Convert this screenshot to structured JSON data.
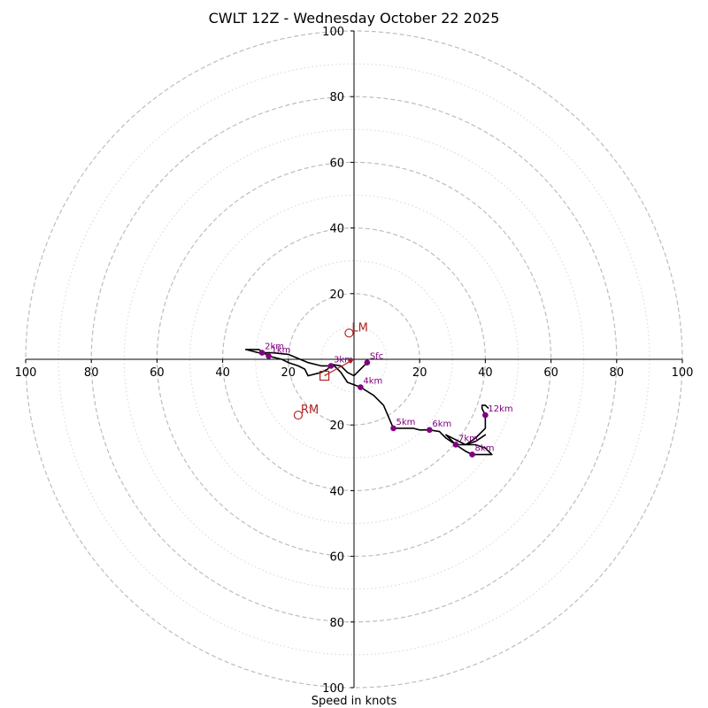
{
  "chart_data": {
    "type": "hodograph",
    "title": "CWLT 12Z - Wednesday October 22 2025",
    "xlabel": "Speed in knots",
    "units": "knots",
    "max_speed": 100,
    "major_rings": [
      20,
      40,
      60,
      80,
      100
    ],
    "minor_rings": [
      10,
      30,
      50,
      70,
      90
    ],
    "x_tick_labels": [
      "100",
      "80",
      "60",
      "40",
      "20",
      "20",
      "40",
      "60",
      "80",
      "100"
    ],
    "y_tick_labels": [
      "100",
      "80",
      "60",
      "40",
      "20",
      "20",
      "40",
      "60",
      "80",
      "100"
    ],
    "hodograph_trace": [
      [
        4,
        -1
      ],
      [
        3,
        -2
      ],
      [
        1,
        -4
      ],
      [
        0,
        -5
      ],
      [
        -2,
        -4
      ],
      [
        -4,
        -2
      ],
      [
        -7,
        -1.5
      ],
      [
        -8,
        -3
      ],
      [
        -10,
        -4
      ],
      [
        -14,
        -5
      ],
      [
        -15,
        -3
      ],
      [
        -17,
        -2
      ],
      [
        -20,
        -1
      ],
      [
        -22,
        0
      ],
      [
        -26,
        1
      ],
      [
        -29,
        3
      ],
      [
        -33,
        3
      ],
      [
        -29,
        2
      ],
      [
        -25,
        2
      ],
      [
        -20,
        1.5
      ],
      [
        -14,
        -1
      ],
      [
        -10,
        -2
      ],
      [
        -6,
        -2
      ],
      [
        -4,
        -4
      ],
      [
        -2,
        -7
      ],
      [
        2,
        -8.5
      ],
      [
        6,
        -11
      ],
      [
        9,
        -14
      ],
      [
        12,
        -21
      ],
      [
        14,
        -21
      ],
      [
        18,
        -21
      ],
      [
        20,
        -21.5
      ],
      [
        23,
        -21.5
      ],
      [
        26,
        -22
      ],
      [
        28,
        -24
      ],
      [
        31,
        -26
      ],
      [
        34,
        -26
      ],
      [
        37,
        -25
      ],
      [
        40,
        -23
      ],
      [
        37,
        -25
      ],
      [
        34,
        -26
      ],
      [
        31,
        -26
      ],
      [
        34,
        -28
      ],
      [
        36,
        -29
      ],
      [
        40,
        -29
      ],
      [
        42,
        -29
      ],
      [
        40,
        -27
      ],
      [
        37,
        -26
      ],
      [
        34,
        -26
      ],
      [
        31,
        -26
      ],
      [
        28,
        -23
      ],
      [
        34,
        -26
      ],
      [
        37,
        -24
      ],
      [
        40,
        -21
      ],
      [
        40,
        -17
      ],
      [
        39,
        -15
      ],
      [
        39,
        -14
      ],
      [
        40,
        -14
      ],
      [
        41,
        -15
      ]
    ],
    "height_markers": [
      {
        "label": "Sfc",
        "u": 4,
        "v": -1
      },
      {
        "label": "1km",
        "u": -26,
        "v": 1
      },
      {
        "label": "2km",
        "u": -28,
        "v": 2
      },
      {
        "label": "3km",
        "u": -7,
        "v": -2
      },
      {
        "label": "4km",
        "u": 2,
        "v": -8.5
      },
      {
        "label": "5km",
        "u": 12,
        "v": -21
      },
      {
        "label": "6km",
        "u": 23,
        "v": -21.5
      },
      {
        "label": "7km",
        "u": 31,
        "v": -26
      },
      {
        "label": "8km",
        "u": 36,
        "v": -29
      },
      {
        "label": "12km",
        "u": 40,
        "v": -17
      }
    ],
    "storm_motions": [
      {
        "label": "LM",
        "u": -1.5,
        "v": 8
      },
      {
        "label": "RM",
        "u": -17,
        "v": -17
      }
    ],
    "mean_wind": {
      "u": -9,
      "v": -5
    },
    "critical_angle_arrow": {
      "from": [
        -9,
        -5
      ],
      "to": [
        0,
        0
      ]
    }
  }
}
